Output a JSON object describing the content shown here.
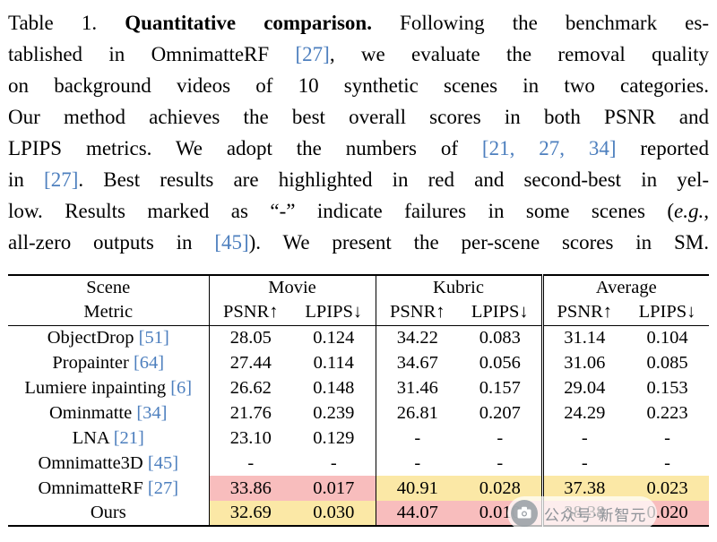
{
  "colors": {
    "best": "#f8bdbd",
    "second": "#fbe8a6",
    "cite": "#4d7fbe",
    "rule": "#000000"
  },
  "caption": {
    "lines": [
      [
        {
          "t": "Table 1. "
        },
        {
          "t": "Quantitative comparison.",
          "s": "b"
        },
        {
          "t": " Following the benchmark es-"
        }
      ],
      [
        {
          "t": "tablished in OmnimatteRF "
        },
        {
          "t": "[27]",
          "s": "c"
        },
        {
          "t": ", we evaluate the removal quality"
        }
      ],
      [
        {
          "t": "on background videos of 10 synthetic scenes in two categories."
        }
      ],
      [
        {
          "t": "Our method achieves the best overall scores in both PSNR and"
        }
      ],
      [
        {
          "t": "LPIPS metrics.  We adopt the numbers of "
        },
        {
          "t": "[21, 27, 34]",
          "s": "c"
        },
        {
          "t": " reported"
        }
      ],
      [
        {
          "t": "in "
        },
        {
          "t": "[27]",
          "s": "c"
        },
        {
          "t": ". Best results are highlighted in red and second-best in yel-"
        }
      ],
      [
        {
          "t": "low. Results marked as “-” indicate failures in some scenes ("
        },
        {
          "t": "e.g.",
          "s": "i"
        },
        {
          "t": ","
        }
      ],
      [
        {
          "t": "all-zero outputs in "
        },
        {
          "t": "[45]",
          "s": "c"
        },
        {
          "t": "). We present the per-scene scores in SM."
        }
      ]
    ]
  },
  "table": {
    "scene_header": "Scene",
    "metric_header": "Metric",
    "groups": [
      "Movie",
      "Kubric",
      "Average"
    ],
    "metric_labels": [
      "PSNR↑",
      "LPIPS↓"
    ],
    "rows": [
      {
        "name": "ObjectDrop",
        "cite": "[51]",
        "values": [
          "28.05",
          "0.124",
          "34.22",
          "0.083",
          "31.14",
          "0.104"
        ],
        "hl": [
          "",
          "",
          "",
          "",
          "",
          ""
        ]
      },
      {
        "name": "Propainter",
        "cite": "[64]",
        "values": [
          "27.44",
          "0.114",
          "34.67",
          "0.056",
          "31.06",
          "0.085"
        ],
        "hl": [
          "",
          "",
          "",
          "",
          "",
          ""
        ]
      },
      {
        "name": "Lumiere inpainting",
        "cite": "[6]",
        "values": [
          "26.62",
          "0.148",
          "31.46",
          "0.157",
          "29.04",
          "0.153"
        ],
        "hl": [
          "",
          "",
          "",
          "",
          "",
          ""
        ]
      },
      {
        "name": "Ominmatte",
        "cite": "[34]",
        "values": [
          "21.76",
          "0.239",
          "26.81",
          "0.207",
          "24.29",
          "0.223"
        ],
        "hl": [
          "",
          "",
          "",
          "",
          "",
          ""
        ]
      },
      {
        "name": "LNA",
        "cite": "[21]",
        "values": [
          "23.10",
          "0.129",
          "-",
          "-",
          "-",
          "-"
        ],
        "hl": [
          "",
          "",
          "",
          "",
          "",
          ""
        ]
      },
      {
        "name": "Omnimatte3D",
        "cite": "[45]",
        "values": [
          "-",
          "-",
          "-",
          "-",
          "-",
          "-"
        ],
        "hl": [
          "",
          "",
          "",
          "",
          "",
          ""
        ]
      },
      {
        "name": "OmnimatteRF",
        "cite": "[27]",
        "values": [
          "33.86",
          "0.017",
          "40.91",
          "0.028",
          "37.38",
          "0.023"
        ],
        "hl": [
          "best",
          "best",
          "second",
          "second",
          "second",
          "second"
        ]
      },
      {
        "name": "Ours",
        "cite": "",
        "values": [
          "32.69",
          "0.030",
          "44.07",
          "0.010",
          "38.38",
          "0.020"
        ],
        "hl": [
          "second",
          "second",
          "best",
          "best",
          "best",
          "best"
        ]
      }
    ]
  },
  "watermark": {
    "icon": "camera-icon",
    "text": "公众号·新智元"
  }
}
